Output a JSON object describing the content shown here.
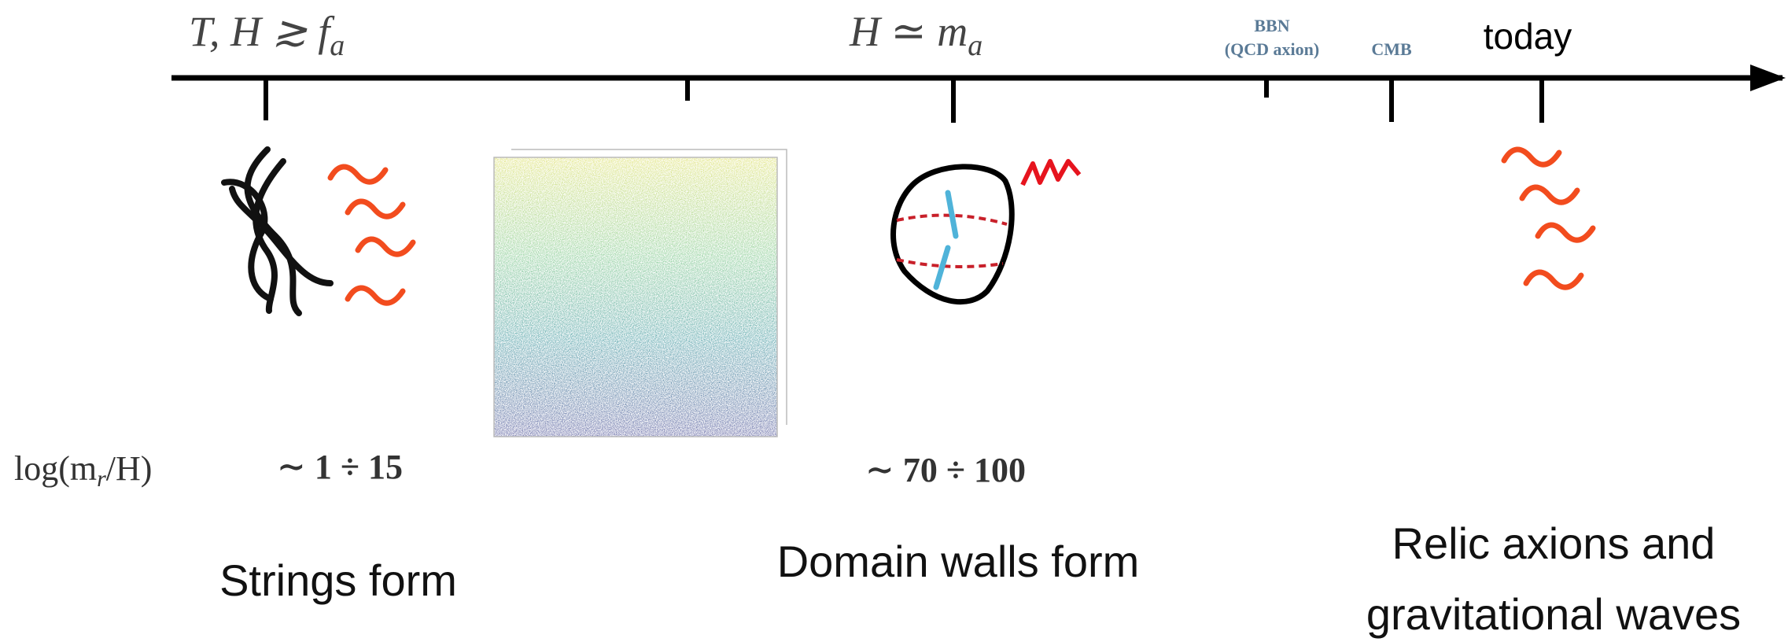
{
  "timeline": {
    "start": {
      "label": "T, H ≳ f",
      "subscript": "a"
    },
    "walls": {
      "label": "H ≃ m",
      "subscript": "a"
    },
    "bbn": {
      "label": "BBN",
      "note": "(QCD axion)"
    },
    "cmb": {
      "label": "CMB"
    },
    "today": {
      "label": "today"
    }
  },
  "log_row": {
    "label": "log(m",
    "subscript": "r",
    "suffix": "/H)",
    "strings": "∼ 1 ÷ 15",
    "walls": "∼ 70 ÷ 100"
  },
  "captions": {
    "strings": "Strings form",
    "walls": "Domain walls form",
    "relic": [
      "Relic axions and",
      "gravitational waves"
    ]
  }
}
